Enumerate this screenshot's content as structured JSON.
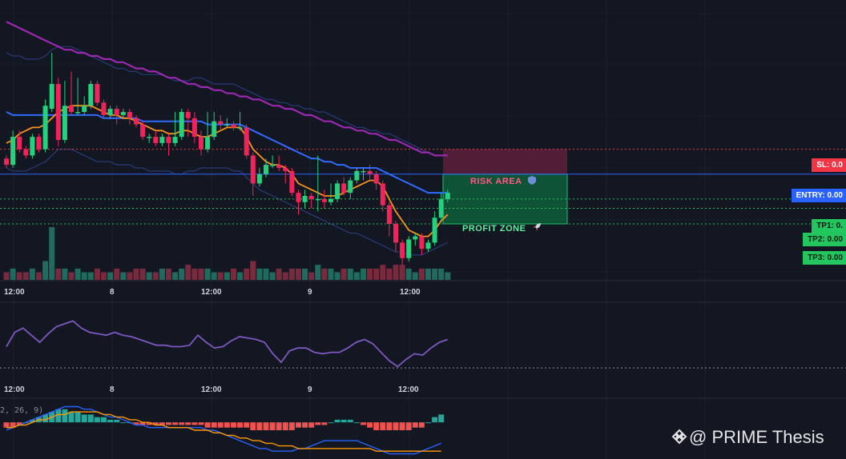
{
  "chart_data": [
    {
      "type": "candlestick",
      "title": "",
      "x_labels": [
        "12:00",
        "8",
        "12:00",
        "9",
        "12:00"
      ],
      "candles": [
        [
          36.9,
          36.7,
          37.0,
          36.6
        ],
        [
          36.7,
          37.6,
          37.8,
          36.6
        ],
        [
          37.6,
          37.2,
          37.8,
          37.1
        ],
        [
          37.2,
          37.0,
          37.3,
          36.9
        ],
        [
          37.0,
          37.6,
          37.7,
          36.9
        ],
        [
          37.6,
          37.2,
          37.7,
          37.1
        ],
        [
          37.2,
          38.6,
          38.8,
          37.1
        ],
        [
          38.5,
          39.3,
          40.3,
          38.4
        ],
        [
          39.3,
          37.5,
          39.5,
          37.3
        ],
        [
          37.5,
          38.6,
          39.4,
          37.4
        ],
        [
          38.6,
          38.4,
          39.7,
          38.3
        ],
        [
          38.4,
          38.4,
          39.5,
          38.3
        ],
        [
          38.4,
          38.6,
          38.9,
          38.3
        ],
        [
          38.6,
          39.3,
          39.4,
          38.5
        ],
        [
          39.3,
          38.7,
          39.4,
          38.6
        ],
        [
          38.7,
          38.3,
          38.8,
          38.2
        ],
        [
          38.3,
          38.5,
          38.6,
          38.2
        ],
        [
          38.5,
          38.3,
          38.6,
          38.0
        ],
        [
          38.3,
          38.4,
          38.5,
          38.2
        ],
        [
          38.4,
          38.2,
          38.5,
          38.0
        ],
        [
          38.2,
          38.0,
          38.3,
          37.9
        ],
        [
          38.0,
          37.6,
          38.1,
          37.5
        ],
        [
          37.6,
          37.6,
          37.7,
          37.4
        ],
        [
          37.6,
          37.4,
          37.8,
          37.3
        ],
        [
          37.4,
          37.6,
          37.7,
          37.3
        ],
        [
          37.6,
          37.4,
          37.7,
          37.0
        ],
        [
          37.4,
          37.6,
          38.4,
          37.3
        ],
        [
          37.6,
          38.4,
          38.5,
          37.5
        ],
        [
          38.4,
          38.2,
          38.5,
          37.6
        ],
        [
          38.2,
          37.6,
          38.4,
          37.4
        ],
        [
          37.6,
          37.2,
          37.8,
          37.0
        ],
        [
          37.2,
          37.6,
          38.4,
          37.1
        ],
        [
          37.6,
          38.1,
          38.4,
          37.5
        ],
        [
          38.1,
          38.0,
          38.3,
          37.8
        ],
        [
          38.0,
          38.0,
          38.2,
          37.9
        ],
        [
          38.0,
          37.9,
          38.1,
          37.8
        ],
        [
          37.9,
          37.9,
          38.4,
          37.8
        ],
        [
          37.9,
          37.0,
          38.0,
          36.9
        ],
        [
          37.0,
          36.1,
          37.1,
          35.7
        ],
        [
          36.1,
          36.4,
          36.6,
          36.0
        ],
        [
          36.4,
          36.7,
          36.9,
          36.3
        ],
        [
          36.7,
          36.7,
          37.0,
          36.6
        ],
        [
          36.7,
          36.6,
          37.0,
          36.5
        ],
        [
          36.6,
          36.5,
          36.7,
          36.1
        ],
        [
          36.5,
          35.8,
          36.6,
          35.7
        ],
        [
          35.8,
          35.5,
          35.9,
          35.1
        ],
        [
          35.5,
          35.7,
          35.9,
          35.3
        ],
        [
          35.7,
          35.6,
          35.8,
          35.3
        ],
        [
          35.6,
          35.6,
          37.0,
          35.2
        ],
        [
          35.6,
          35.5,
          35.9,
          35.3
        ],
        [
          35.5,
          35.6,
          36.1,
          35.4
        ],
        [
          35.6,
          36.1,
          36.2,
          35.5
        ],
        [
          36.1,
          35.8,
          36.3,
          35.7
        ],
        [
          35.8,
          36.2,
          36.3,
          35.6
        ],
        [
          36.2,
          36.5,
          36.6,
          36.1
        ],
        [
          36.5,
          36.5,
          36.6,
          36.2
        ],
        [
          36.5,
          36.4,
          36.7,
          36.2
        ],
        [
          36.4,
          36.1,
          36.5,
          35.9
        ],
        [
          36.1,
          35.4,
          36.2,
          35.2
        ],
        [
          35.4,
          34.8,
          35.5,
          34.4
        ],
        [
          34.8,
          34.2,
          34.9,
          33.9
        ],
        [
          34.2,
          33.7,
          34.3,
          33.4
        ],
        [
          33.7,
          34.3,
          34.4,
          33.6
        ],
        [
          34.3,
          34.4,
          34.5,
          34.1
        ],
        [
          34.4,
          34.0,
          34.5,
          33.8
        ],
        [
          34.0,
          34.2,
          34.3,
          33.9
        ],
        [
          34.2,
          35.0,
          35.2,
          34.1
        ],
        [
          35.0,
          35.6,
          35.8,
          34.9
        ],
        [
          35.6,
          35.8,
          35.9,
          35.5
        ]
      ],
      "volume": [
        2,
        3,
        2,
        2,
        3,
        2,
        5,
        14,
        3,
        3,
        2,
        3,
        2,
        2,
        3,
        2,
        2,
        3,
        2,
        2,
        3,
        3,
        2,
        2,
        3,
        3,
        2,
        3,
        4,
        3,
        3,
        3,
        2,
        2,
        2,
        3,
        2,
        3,
        5,
        3,
        3,
        2,
        3,
        2,
        3,
        3,
        3,
        2,
        4,
        3,
        3,
        2,
        3,
        3,
        2,
        3,
        3,
        3,
        4,
        3,
        4,
        4,
        3,
        2,
        3,
        3,
        3,
        3,
        2
      ],
      "series": [
        {
          "values": [
            37.4,
            37.5,
            37.7,
            37.8,
            37.9,
            37.9,
            38.0,
            38.2,
            38.4,
            38.5,
            38.6,
            38.6,
            38.6,
            38.6,
            38.5,
            38.4,
            38.3,
            38.3,
            38.2,
            38.2,
            38.1,
            38.0,
            37.9,
            37.8,
            37.8,
            37.7,
            37.7,
            37.8,
            37.8,
            37.7,
            37.6,
            37.6,
            37.7,
            37.8,
            37.9,
            37.9,
            37.9,
            37.6,
            37.2,
            37.0,
            36.8,
            36.7,
            36.7,
            36.6,
            36.4,
            36.1,
            36.0,
            35.9,
            35.8,
            35.7,
            35.7,
            35.7,
            35.8,
            35.9,
            36.0,
            36.1,
            36.2,
            36.2,
            36.0,
            35.6,
            35.2,
            34.9,
            34.6,
            34.5,
            34.4,
            34.4,
            34.6,
            34.9,
            35.1
          ]
        },
        {
          "values": [
            38.4,
            38.3,
            38.3,
            38.3,
            38.3,
            38.3,
            38.3,
            38.3,
            38.3,
            38.3,
            38.3,
            38.3,
            38.3,
            38.3,
            38.3,
            38.2,
            38.2,
            38.2,
            38.2,
            38.2,
            38.2,
            38.1,
            38.1,
            38.1,
            38.1,
            38.1,
            38.1,
            38.1,
            38.1,
            38.1,
            38.1,
            38.0,
            38.0,
            38.0,
            38.0,
            38.0,
            38.0,
            37.9,
            37.8,
            37.7,
            37.6,
            37.5,
            37.4,
            37.3,
            37.2,
            37.1,
            37.0,
            36.9,
            36.9,
            36.8,
            36.8,
            36.7,
            36.7,
            36.6,
            36.6,
            36.6,
            36.6,
            36.6,
            36.5,
            36.4,
            36.3,
            36.2,
            36.1,
            36.0,
            35.9,
            35.8,
            35.8,
            35.8,
            35.8
          ]
        },
        {
          "values": [
            41.3,
            41.2,
            41.1,
            41.0,
            40.9,
            40.8,
            40.7,
            40.6,
            40.5,
            40.4,
            40.4,
            40.3,
            40.3,
            40.2,
            40.2,
            40.1,
            40.1,
            40.0,
            40.0,
            39.9,
            39.8,
            39.8,
            39.7,
            39.7,
            39.6,
            39.5,
            39.5,
            39.4,
            39.3,
            39.3,
            39.2,
            39.2,
            39.1,
            39.1,
            39.0,
            39.0,
            38.9,
            38.9,
            38.8,
            38.8,
            38.7,
            38.6,
            38.6,
            38.5,
            38.5,
            38.4,
            38.3,
            38.3,
            38.2,
            38.1,
            38.1,
            38.0,
            37.9,
            37.9,
            37.8,
            37.8,
            37.7,
            37.7,
            37.6,
            37.5,
            37.5,
            37.4,
            37.3,
            37.2,
            37.1,
            37.1,
            37.0,
            37.0,
            37.0
          ]
        },
        {
          "values": [
            40.3,
            40.2,
            40.2,
            40.1,
            40.1,
            40.1,
            40.2,
            40.4,
            40.5,
            40.5,
            40.5,
            40.4,
            40.3,
            40.2,
            40.1,
            40.0,
            39.9,
            39.8,
            39.8,
            39.7,
            39.7,
            39.6,
            39.6,
            39.6,
            39.6,
            39.5,
            39.4,
            39.4,
            39.4,
            39.5,
            39.5,
            39.4,
            39.3,
            39.3,
            39.3,
            39.3,
            39.2,
            39.1,
            39.0,
            38.9,
            38.8,
            38.8,
            38.7,
            38.7,
            38.6,
            38.6,
            38.5,
            38.5,
            38.4,
            38.4,
            38.3,
            38.2,
            38.1,
            38.0,
            37.9,
            37.9,
            37.8,
            37.8,
            37.7,
            37.7,
            37.6,
            37.5,
            37.4,
            37.3,
            37.2,
            37.1,
            37.0,
            37.0,
            37.0
          ]
        },
        {
          "values": [
            36.6,
            36.5,
            36.5,
            36.5,
            36.6,
            36.7,
            36.8,
            37.0,
            37.2,
            37.2,
            37.2,
            37.1,
            37.0,
            36.9,
            36.8,
            36.8,
            36.8,
            36.7,
            36.7,
            36.7,
            36.6,
            36.6,
            36.5,
            36.5,
            36.5,
            36.5,
            36.4,
            36.4,
            36.5,
            36.5,
            36.6,
            36.6,
            36.6,
            36.6,
            36.6,
            36.5,
            36.5,
            36.3,
            36.1,
            35.9,
            35.8,
            35.7,
            35.6,
            35.5,
            35.4,
            35.3,
            35.2,
            35.1,
            35.0,
            34.9,
            34.8,
            34.7,
            34.6,
            34.5,
            34.5,
            34.4,
            34.3,
            34.2,
            34.1,
            34.0,
            33.9,
            33.9,
            33.8,
            33.8,
            33.8,
            33.9,
            34.0,
            34.1,
            34.2
          ]
        }
      ],
      "levels": [
        {
          "label": "SL: 0.0",
          "value": 37.2
        },
        {
          "label": "ENTRY: 0.00",
          "value": 36.4
        },
        {
          "label": "TP1: 0.",
          "value": 35.6
        },
        {
          "label": "TP2: 0.00",
          "value": 35.3
        },
        {
          "label": "TP3: 0.00",
          "value": 34.8
        }
      ],
      "zones": [
        {
          "label": "RISK AREA",
          "icon": "shield-icon",
          "from": 36.4,
          "to": 37.2
        },
        {
          "label": "PROFIT ZONE",
          "icon": "rocket-icon",
          "from": 36.4,
          "to": 34.8
        }
      ],
      "ylim": [
        33.0,
        42.0
      ]
    },
    {
      "type": "line",
      "title": "",
      "x_labels": [
        "12:00",
        "8",
        "12:00",
        "9",
        "12:00"
      ],
      "values": [
        45,
        55,
        58,
        53,
        48,
        54,
        59,
        61,
        63,
        58,
        55,
        54,
        53,
        55,
        53,
        52,
        50,
        48,
        46,
        46,
        45,
        45,
        46,
        53,
        48,
        44,
        45,
        49,
        52,
        51,
        50,
        48,
        40,
        34,
        42,
        44,
        44,
        41,
        40,
        41,
        41,
        44,
        48,
        50,
        47,
        41,
        35,
        31,
        36,
        40,
        39,
        44,
        48,
        50
      ],
      "reference_line": 30,
      "ylim": [
        20,
        75
      ]
    },
    {
      "type": "bar",
      "title": "",
      "title_fragment": "2, 26, 9)",
      "histogram": [
        -2,
        -2,
        -1,
        0,
        1,
        2,
        3,
        4,
        5,
        5,
        4,
        4,
        3,
        3,
        2,
        2,
        1,
        1,
        0,
        0,
        -1,
        -1,
        -1,
        -1,
        -1,
        -1,
        -1,
        -1,
        -1,
        -1,
        -1,
        -2,
        -2,
        -2,
        -2,
        -2,
        -2,
        -2,
        -3,
        -3,
        -3,
        -3,
        -3,
        -3,
        -3,
        -2,
        -2,
        -2,
        -1,
        -1,
        0,
        1,
        1,
        1,
        0,
        -1,
        -2,
        -3,
        -3,
        -3,
        -3,
        -3,
        -3,
        -2,
        -2,
        0,
        2,
        3
      ],
      "series": [
        {
          "values": [
            -3,
            -2,
            -1,
            0,
            1,
            2,
            3,
            4,
            5,
            6,
            6,
            6,
            5,
            5,
            4,
            3,
            2,
            2,
            1,
            0,
            -1,
            -1,
            -2,
            -2,
            -2,
            -2,
            -2,
            -2,
            -2,
            -2,
            -2,
            -3,
            -3,
            -4,
            -5,
            -6,
            -7,
            -8,
            -9,
            -10,
            -10,
            -11,
            -11,
            -11,
            -11,
            -10,
            -10,
            -9,
            -8,
            -7,
            -7,
            -7,
            -7,
            -7,
            -7,
            -8,
            -9,
            -10,
            -11,
            -12,
            -12,
            -12,
            -12,
            -12,
            -11,
            -10,
            -9,
            -8
          ]
        },
        {
          "values": [
            -2,
            -2,
            -1,
            -1,
            0,
            1,
            1,
            2,
            3,
            3,
            4,
            4,
            4,
            4,
            4,
            3,
            3,
            2,
            2,
            1,
            1,
            0,
            0,
            -1,
            -1,
            -2,
            -2,
            -2,
            -2,
            -3,
            -3,
            -3,
            -4,
            -4,
            -5,
            -5,
            -6,
            -6,
            -7,
            -7,
            -8,
            -8,
            -9,
            -9,
            -9,
            -10,
            -10,
            -10,
            -10,
            -10,
            -10,
            -10,
            -10,
            -10,
            -10,
            -10,
            -10,
            -11,
            -11,
            -11,
            -11,
            -11,
            -11,
            -11,
            -11,
            -11,
            -11,
            -11
          ]
        }
      ],
      "ylim": [
        -14,
        8
      ]
    }
  ],
  "watermark": {
    "text": "@ PRIME Thesis",
    "icon": "binance-icon"
  },
  "colors": {
    "background": "#131722",
    "bull": "#26d07c",
    "bear": "#f0245b",
    "ema_fast": "#f7931a",
    "ema_mid": "#2f6bff",
    "ema_slow": "#9c27b0",
    "band": "#2a3a7a",
    "rsi": "#7e57c2",
    "macd_pos": "#26a69a",
    "macd_neg": "#ef5350"
  }
}
